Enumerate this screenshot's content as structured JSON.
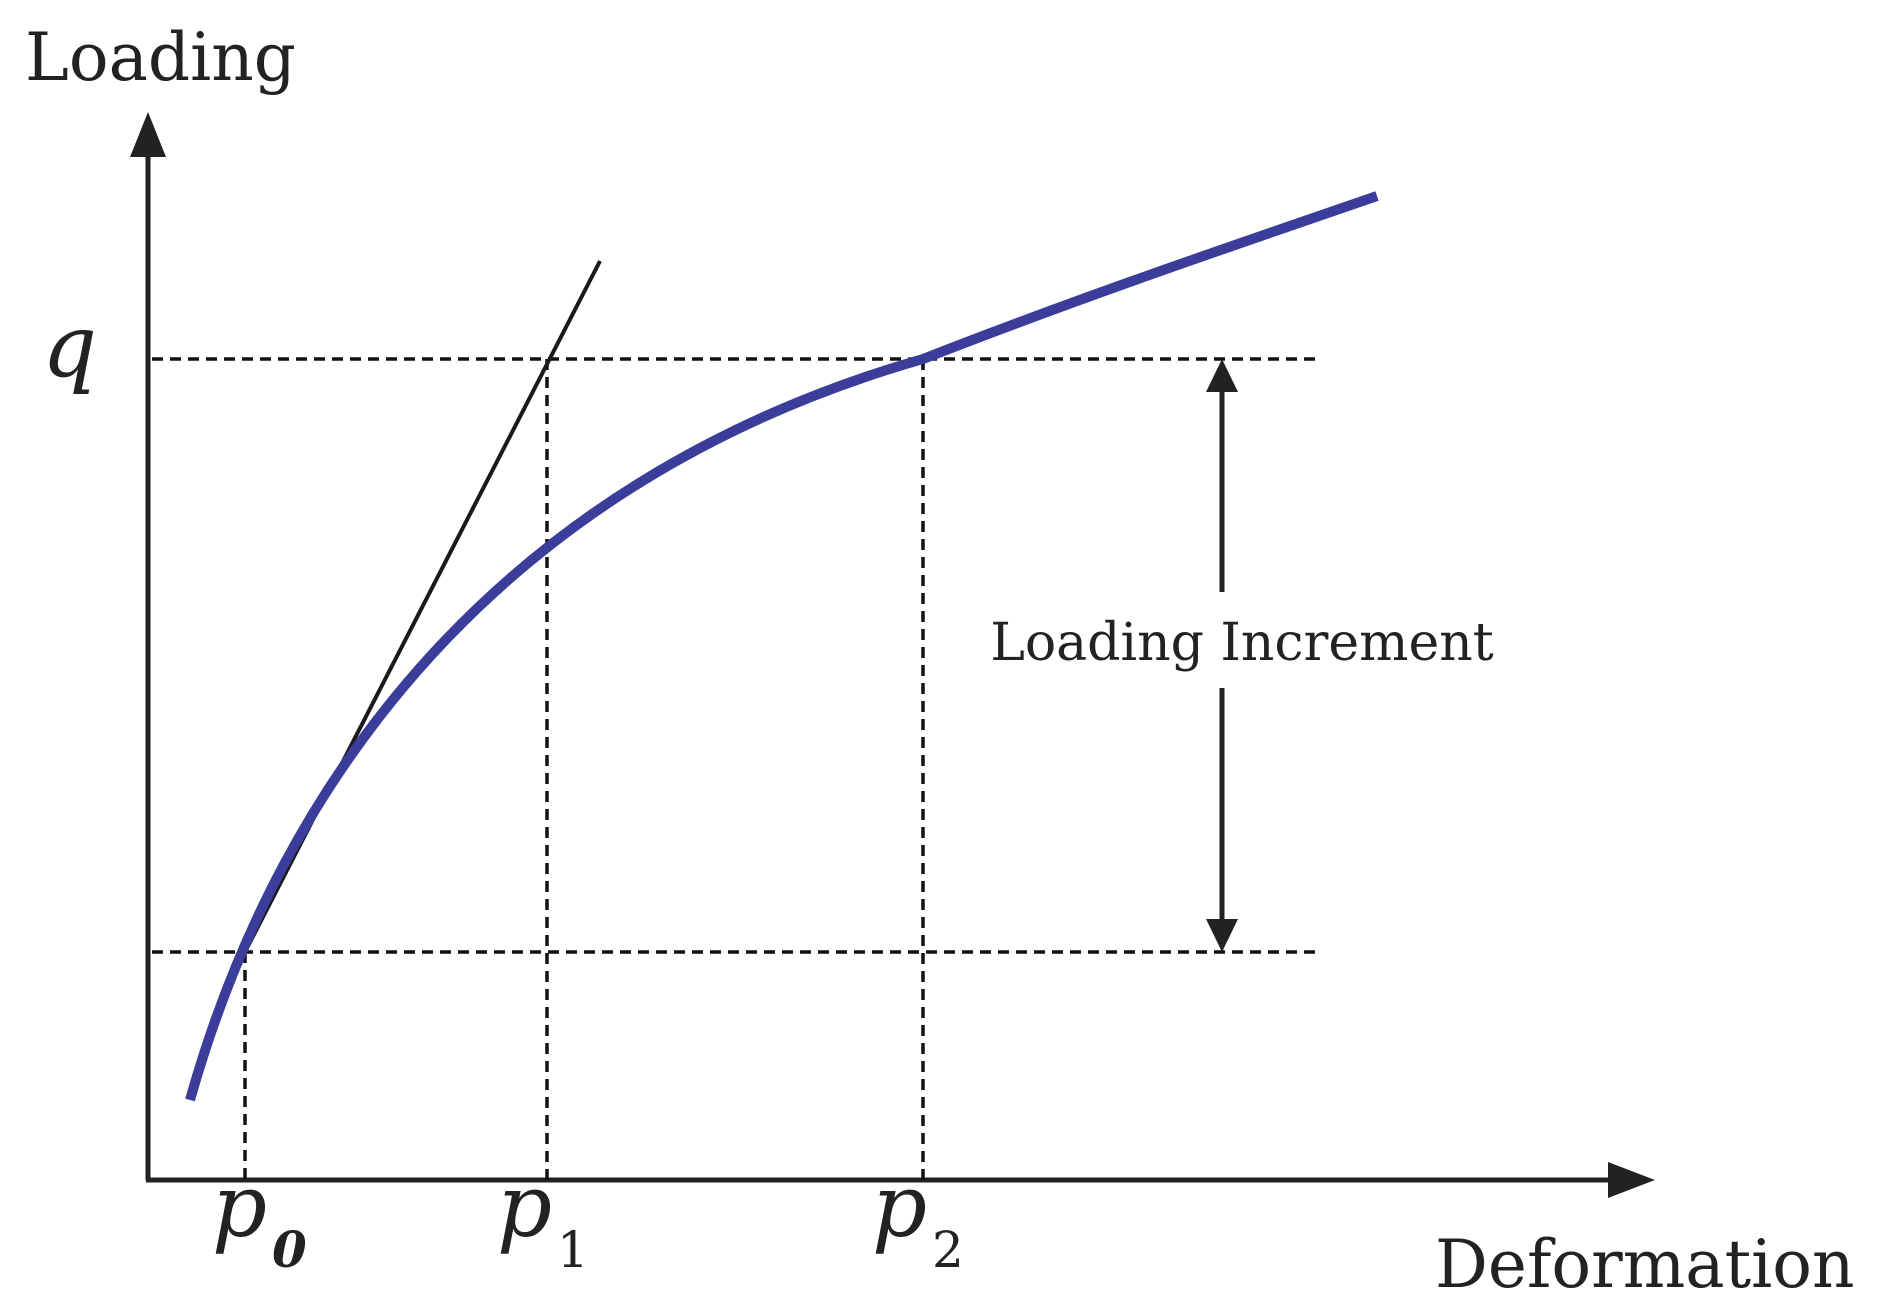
{
  "axes": {
    "y_label": "Loading",
    "x_label": "Deformation"
  },
  "levels": {
    "q": "q"
  },
  "points": [
    {
      "symbol": "p",
      "subscript": "0"
    },
    {
      "symbol": "p",
      "subscript": "1"
    },
    {
      "symbol": "p",
      "subscript": "2"
    }
  ],
  "annotation": {
    "increment_label": "Loading Increment"
  },
  "colors": {
    "curve": "#3a3d9a",
    "axis": "#222222",
    "guides": "#111111"
  }
}
